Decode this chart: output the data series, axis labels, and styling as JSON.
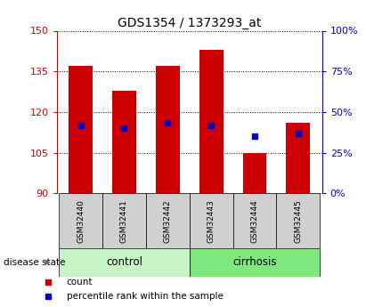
{
  "title": "GDS1354 / 1373293_at",
  "samples": [
    "GSM32440",
    "GSM32441",
    "GSM32442",
    "GSM32443",
    "GSM32444",
    "GSM32445"
  ],
  "bar_bottoms": [
    90,
    90,
    90,
    90,
    90,
    90
  ],
  "bar_tops": [
    137,
    128,
    137,
    143,
    105,
    116
  ],
  "percentile_values": [
    115,
    114,
    116,
    115,
    111,
    112
  ],
  "ylim_left": [
    90,
    150
  ],
  "ylim_right": [
    0,
    100
  ],
  "yticks_left": [
    90,
    105,
    120,
    135,
    150
  ],
  "yticks_right": [
    0,
    25,
    50,
    75,
    100
  ],
  "group_control_color": "#c8f5c8",
  "group_cirrhosis_color": "#7ee87e",
  "bar_color": "#cc0000",
  "percentile_color": "#0000cc",
  "sample_box_color": "#d0d0d0",
  "left_axis_color": "#cc0000",
  "right_axis_color": "#0000cc",
  "legend_items": [
    {
      "label": "count",
      "color": "#cc0000"
    },
    {
      "label": "percentile rank within the sample",
      "color": "#0000cc"
    }
  ]
}
